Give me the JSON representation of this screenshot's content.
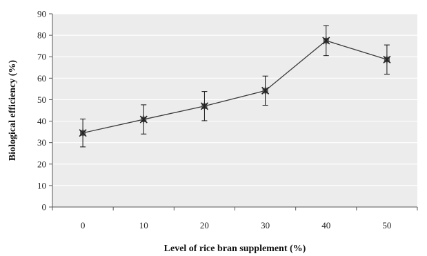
{
  "chart_data": {
    "type": "line",
    "title": "",
    "xlabel": "Level of rice bran supplement (%)",
    "ylabel": "Biological efficiency (%)",
    "x": [
      0,
      10,
      20,
      30,
      40,
      50
    ],
    "x_tick_labels": [
      "0",
      "10",
      "20",
      "30",
      "40",
      "50"
    ],
    "y_ticks": [
      0,
      10,
      20,
      30,
      40,
      50,
      60,
      70,
      80,
      90
    ],
    "ylim": [
      0,
      90
    ],
    "grid": true,
    "legend": "none",
    "series": [
      {
        "values": [
          34.5,
          40.8,
          47.0,
          54.2,
          77.5,
          68.7
        ],
        "error": [
          6.5,
          6.8,
          6.8,
          6.8,
          7.0,
          6.8
        ],
        "marker": "asterisk-x",
        "color": "#3a3a3a"
      }
    ],
    "colors": {
      "plot_background": "#ececec",
      "gridline": "#ffffff",
      "axis": "#555555"
    }
  }
}
